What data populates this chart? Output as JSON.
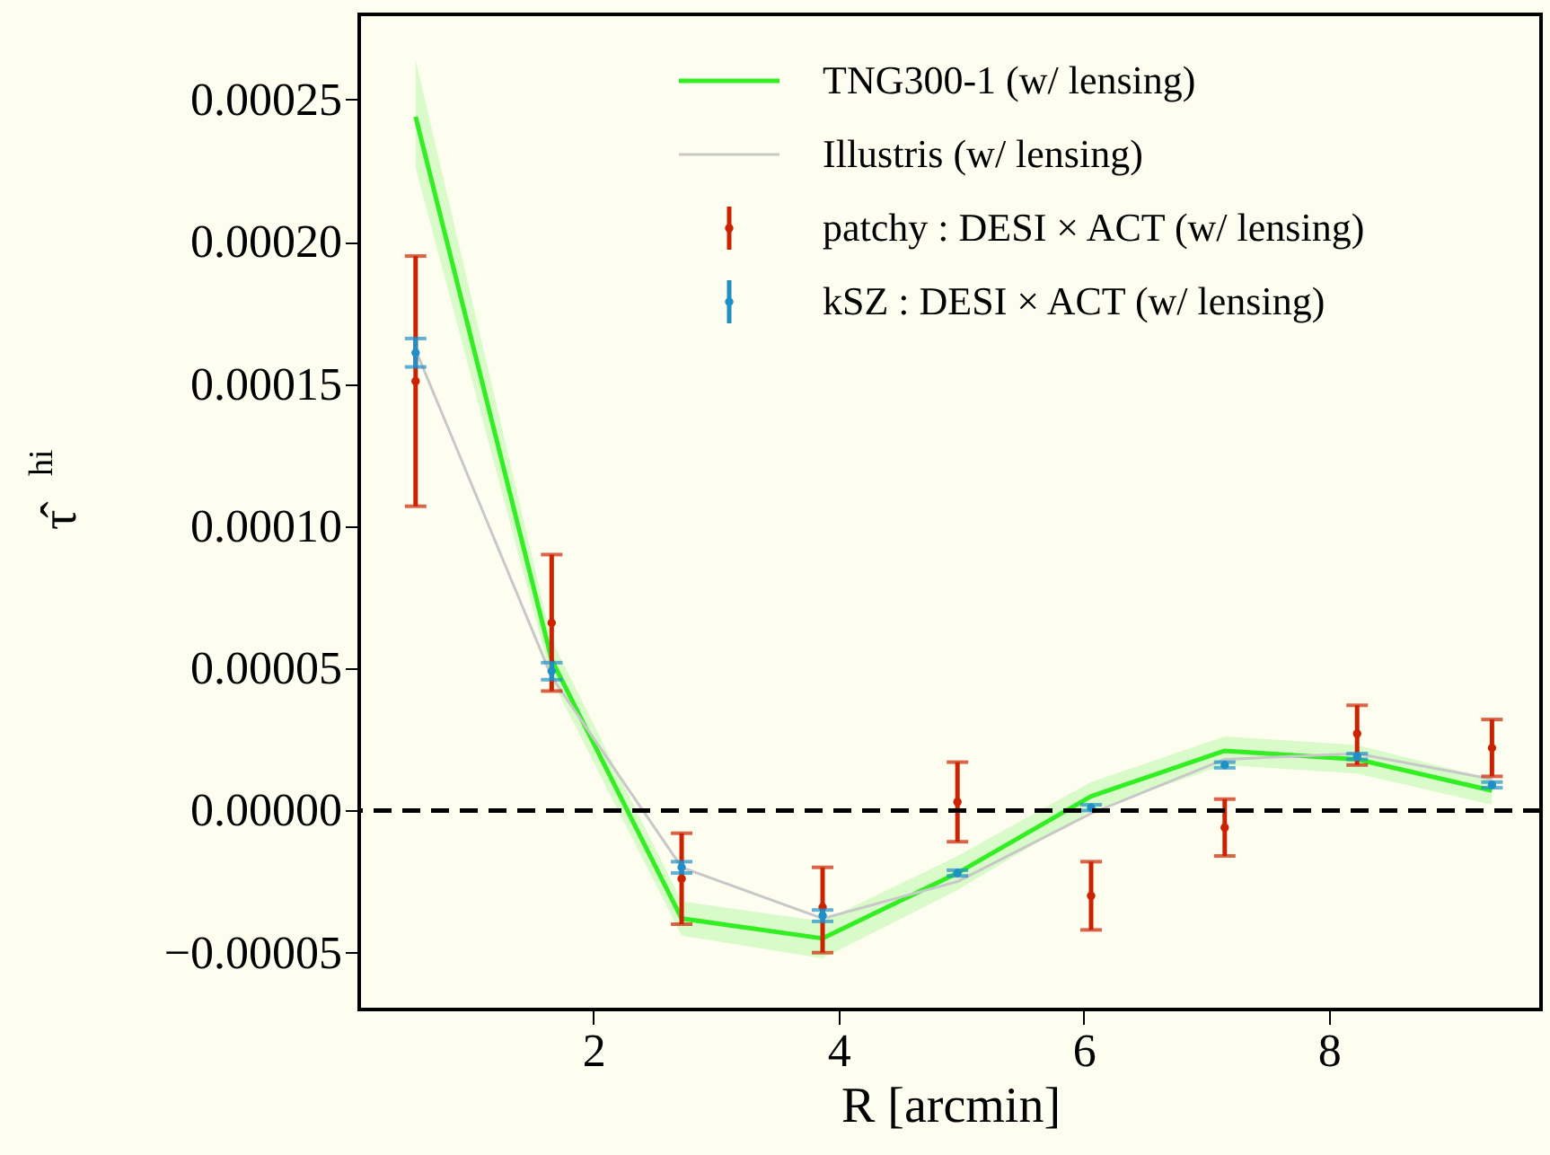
{
  "chart_data": {
    "type": "line",
    "xlabel": "R [arcmin]",
    "ylabel": "τ̂$^{hi}$",
    "x": [
      0.55,
      1.66,
      2.72,
      3.87,
      4.97,
      6.06,
      7.15,
      8.23,
      9.33
    ],
    "xlim": [
      0.09,
      9.73
    ],
    "xticks": [
      2,
      4,
      6,
      8
    ],
    "ylim": [
      -7e-05,
      0.00028
    ],
    "yticks": [
      {
        "value": -5e-05,
        "label": "−0.00005"
      },
      {
        "value": 0,
        "label": "0.00000"
      },
      {
        "value": 5e-05,
        "label": "0.00005"
      },
      {
        "value": 0.0001,
        "label": "0.00010"
      },
      {
        "value": 0.00015,
        "label": "0.00015"
      },
      {
        "value": 0.0002,
        "label": "0.00020"
      },
      {
        "value": 0.00025,
        "label": "0.00025"
      }
    ],
    "series": [
      {
        "name": "TNG300-1 (w/ lensing)",
        "color": "#33ee22",
        "values": [
          0.000244,
          5.3e-05,
          -3.8e-05,
          -4.5e-05,
          -2.2e-05,
          5e-06,
          2.1e-05,
          1.8e-05,
          7e-06
        ],
        "lower": [
          0.000226,
          4.6e-05,
          -4.4e-05,
          -5.2e-05,
          -2.8e-05,
          0.0,
          1.6e-05,
          1.3e-05,
          2e-06
        ],
        "upper": [
          0.000264,
          6e-05,
          -3.2e-05,
          -3.9e-05,
          -1.6e-05,
          1e-05,
          2.6e-05,
          2.3e-05,
          1.1e-05
        ]
      },
      {
        "name": "Illustris (w/ lensing)",
        "color": "#c8c8c8",
        "values": [
          0.000162,
          4.7e-05,
          -2e-05,
          -3.8e-05,
          -2.5e-05,
          -1e-06,
          1.8e-05,
          2e-05,
          1.1e-05
        ]
      },
      {
        "name": "patchy :  DESI × ACT (w/ lensing)",
        "type": "scatter",
        "marker": "circle",
        "color": "#cc2200",
        "values": [
          0.000151,
          6.6e-05,
          -2.4e-05,
          -3.4e-05,
          3e-06,
          -3e-05,
          -6e-06,
          2.7e-05,
          2.2e-05
        ],
        "errors": [
          [
            0.000107,
            0.000195
          ],
          [
            4.2e-05,
            9e-05
          ],
          [
            -4e-05,
            -8e-06
          ],
          [
            -5e-05,
            -2e-05
          ],
          [
            -1.1e-05,
            1.7e-05
          ],
          [
            -4.2e-05,
            -1.8e-05
          ],
          [
            -1.6e-05,
            4e-06
          ],
          [
            1.6e-05,
            3.7e-05
          ],
          [
            1.2e-05,
            3.2e-05
          ]
        ]
      },
      {
        "name": "kSZ :  DESI × ACT (w/ lensing)",
        "type": "scatter",
        "marker": "circle",
        "color": "#1f8fc8",
        "values": [
          0.000161,
          4.9e-05,
          -2e-05,
          -3.7e-05,
          -2.2e-05,
          1e-06,
          1.6e-05,
          1.9e-05,
          9e-06
        ],
        "errors": [
          5e-06,
          3e-06,
          2e-06,
          2e-06,
          1e-06,
          1e-06,
          1e-06,
          1e-06,
          1e-06
        ]
      }
    ],
    "ref_lines": [
      {
        "axis": "y",
        "value": 0,
        "color": "#000000",
        "line_style": "dashed"
      }
    ],
    "grid": false,
    "legend": "top right"
  }
}
